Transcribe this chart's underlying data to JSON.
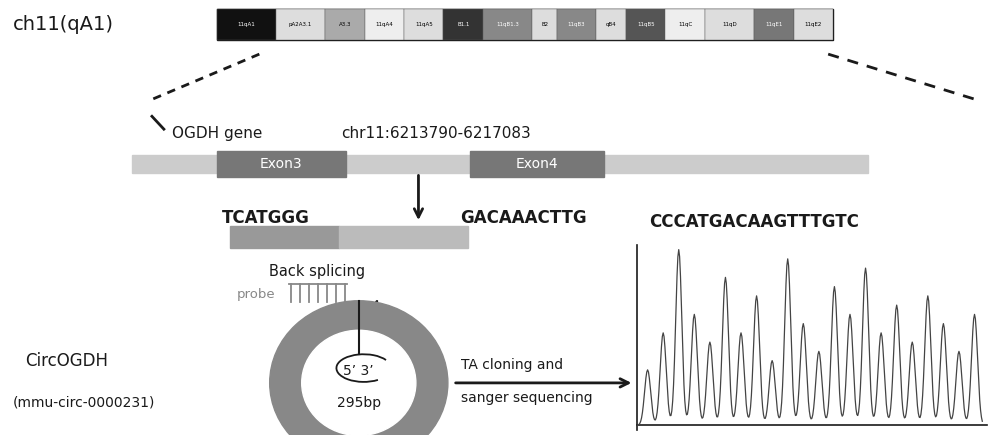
{
  "bg_color": "#ffffff",
  "chromosome_label": "ch11(qA1)",
  "gene_label": "OGDH gene",
  "gene_coord": "chr11:6213790-6217083",
  "exon3_label": "Exon3",
  "exon4_label": "Exon4",
  "seq_left": "TCATGGG",
  "seq_right": "GACAAACTTG",
  "seq_junction": "CCCATGACAAGTTTGTC",
  "back_splicing_label": "Back splicing",
  "probe_label": "probe",
  "circ_label1": "CircOGDH",
  "circ_label2": "(mmu-circ-0000231)",
  "circ_inside1": "5’ 3’",
  "circ_inside2": "295bp",
  "arrow_label1": "TA cloning and",
  "arrow_label2": "sanger sequencing",
  "dark_color": "#1a1a1a",
  "gray_color": "#888888",
  "lightgray_color": "#bbbbbb",
  "exon_color": "#777777",
  "gene_bar_color": "#cccccc",
  "probe_color1": "#999999",
  "probe_color2": "#bbbbbb",
  "bands": [
    [
      "11qA1",
      "#111111",
      0.06
    ],
    [
      "pA2A3.1",
      "#dddddd",
      0.05
    ],
    [
      "A3.3",
      "#aaaaaa",
      0.04
    ],
    [
      "11qA4",
      "#eeeeee",
      0.04
    ],
    [
      "11qA5",
      "#dddddd",
      0.04
    ],
    [
      "B1.1",
      "#333333",
      0.04
    ],
    [
      "11qB1.3",
      "#888888",
      0.05
    ],
    [
      "B2",
      "#dddddd",
      0.025
    ],
    [
      "11qB3",
      "#888888",
      0.04
    ],
    [
      "qB4",
      "#dddddd",
      0.03
    ],
    [
      "11qB5",
      "#555555",
      0.04
    ],
    [
      "11qC",
      "#eeeeee",
      0.04
    ],
    [
      "11qD",
      "#dddddd",
      0.05
    ],
    [
      "11qE1",
      "#777777",
      0.04
    ],
    [
      "11qE2",
      "#dddddd",
      0.04
    ]
  ]
}
